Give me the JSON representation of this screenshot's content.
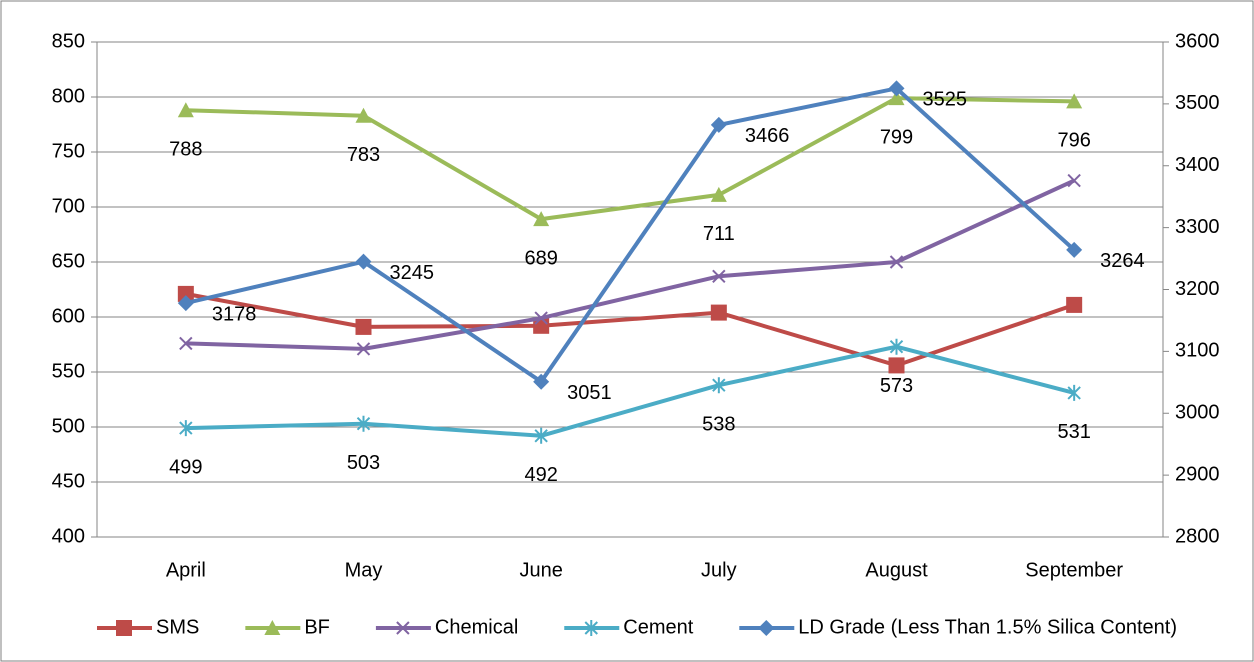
{
  "chart_data": {
    "type": "line",
    "categories": [
      "April",
      "May",
      "June",
      "July",
      "August",
      "September"
    ],
    "ylim": [
      400,
      850
    ],
    "yticks": [
      400,
      450,
      500,
      550,
      600,
      650,
      700,
      750,
      800,
      850
    ],
    "y2lim": [
      2800,
      3600
    ],
    "y2ticks": [
      2800,
      2900,
      3000,
      3100,
      3200,
      3300,
      3400,
      3500,
      3600
    ],
    "grid": true,
    "legend": "bottom",
    "series": [
      {
        "name": "SMS",
        "color": "#be4b48",
        "marker": "square",
        "values": [
          621,
          591,
          592,
          604,
          556,
          611
        ]
      },
      {
        "name": "BF",
        "color": "#9bbb59",
        "marker": "triangle",
        "values": [
          788,
          783,
          689,
          711,
          799,
          796
        ],
        "label_position": "below"
      },
      {
        "name": "Chemical",
        "color": "#8064a2",
        "marker": "x",
        "values": [
          576,
          571,
          599,
          637,
          650,
          724
        ]
      },
      {
        "name": "Cement",
        "color": "#4bacc6",
        "marker": "star",
        "values": [
          499,
          503,
          492,
          538,
          573,
          531
        ],
        "label_position": "below"
      },
      {
        "name": "LD Grade (Less Than 1.5% Silica Content)",
        "color": "#4f81bd",
        "marker": "diamond",
        "axis": "y2",
        "values": [
          3178,
          3245,
          3051,
          3466,
          3525,
          3264
        ],
        "label_position": "right"
      }
    ]
  }
}
